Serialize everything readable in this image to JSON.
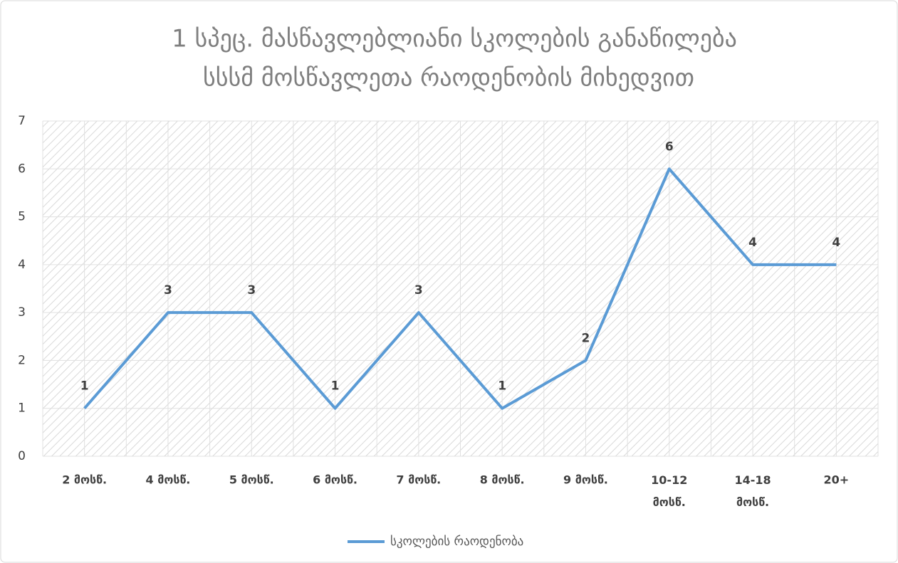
{
  "chart_data": {
    "type": "line",
    "title": [
      "1 სპეც. მასწავლებლიანი სკოლების განაწილება",
      "სსსმ მოსწავლეთა რაოდენობის მიხედვით"
    ],
    "categories": [
      "2 მოსწ.",
      "4 მოსწ.",
      "5 მოსწ.",
      "6 მოსწ.",
      "7 მოსწ.",
      "8 მოსწ.",
      "9 მოსწ.",
      "10-12 მოსწ.",
      "14-18 მოსწ.",
      "20+"
    ],
    "series": [
      {
        "name": "სკოლების რაოდენობა",
        "color": "#5b9bd5",
        "values": [
          1,
          3,
          3,
          1,
          3,
          1,
          2,
          6,
          4,
          4
        ]
      }
    ],
    "ylim": [
      0,
      7
    ],
    "yticks": [
      0,
      1,
      2,
      3,
      4,
      5,
      6,
      7
    ],
    "grid": true,
    "data_labels": true,
    "legend": "bottom"
  }
}
